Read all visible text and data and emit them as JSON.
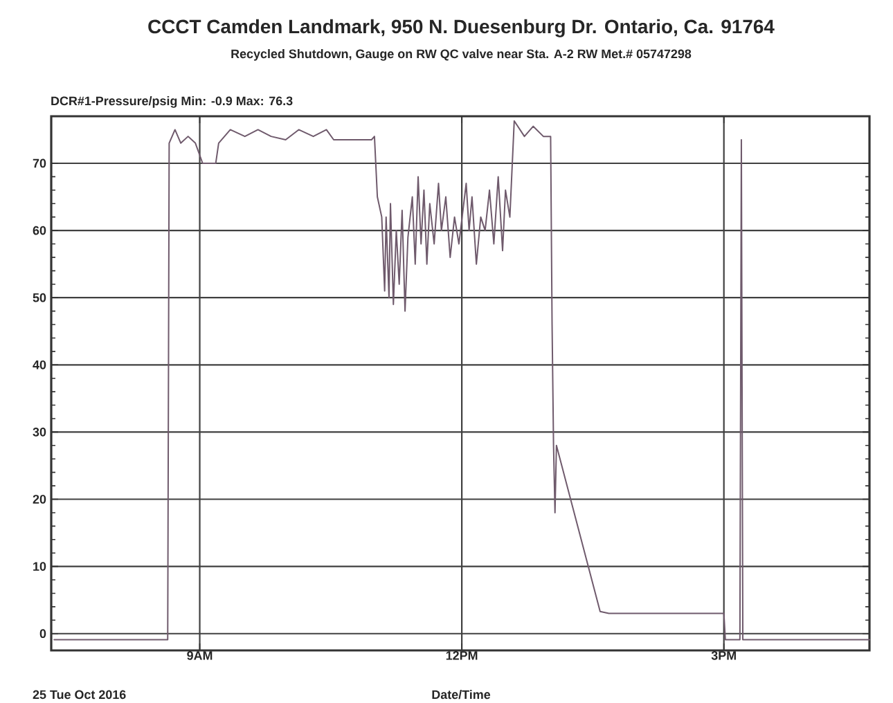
{
  "chart_data": {
    "type": "line",
    "title": "CCCT Camden Landmark, 950 N. Duesenburg Dr. Ontario, Ca. 91764",
    "subtitle": "Recycled Shutdown, Gauge on RW QC valve near Sta. A-2 RW Met.# 05747298",
    "ylabel": "DCR#1-Pressure/psig Min: -0.9 Max: 76.3",
    "xlabel": "Date/Time",
    "annotations": [
      "25 Tue Oct 2016"
    ],
    "x": [
      "2016-10-25T07:20",
      "2016-10-25T08:38",
      "2016-10-25T08:39",
      "2016-10-25T08:43",
      "2016-10-25T08:47",
      "2016-10-25T08:52",
      "2016-10-25T08:57",
      "2016-10-25T09:02",
      "2016-10-25T09:11",
      "2016-10-25T09:13",
      "2016-10-25T09:21",
      "2016-10-25T09:31",
      "2016-10-25T09:40",
      "2016-10-25T09:49",
      "2016-10-25T09:59",
      "2016-10-25T10:08",
      "2016-10-25T10:18",
      "2016-10-25T10:27",
      "2016-10-25T10:32",
      "2016-10-25T10:58",
      "2016-10-25T11:00",
      "2016-10-25T11:02",
      "2016-10-25T11:05",
      "2016-10-25T11:07",
      "2016-10-25T11:08",
      "2016-10-25T11:10",
      "2016-10-25T11:11",
      "2016-10-25T11:13",
      "2016-10-25T11:15",
      "2016-10-25T11:17",
      "2016-10-25T11:19",
      "2016-10-25T11:21",
      "2016-10-25T11:23",
      "2016-10-25T11:26",
      "2016-10-25T11:28",
      "2016-10-25T11:30",
      "2016-10-25T11:32",
      "2016-10-25T11:34",
      "2016-10-25T11:36",
      "2016-10-25T11:38",
      "2016-10-25T11:41",
      "2016-10-25T11:44",
      "2016-10-25T11:46",
      "2016-10-25T11:49",
      "2016-10-25T11:52",
      "2016-10-25T11:55",
      "2016-10-25T11:58",
      "2016-10-25T12:03",
      "2016-10-25T12:05",
      "2016-10-25T12:07",
      "2016-10-25T12:10",
      "2016-10-25T12:13",
      "2016-10-25T12:16",
      "2016-10-25T12:19",
      "2016-10-25T12:22",
      "2016-10-25T12:25",
      "2016-10-25T12:28",
      "2016-10-25T12:30",
      "2016-10-25T12:33",
      "2016-10-25T12:36",
      "2016-10-25T12:43",
      "2016-10-25T12:49",
      "2016-10-25T12:56",
      "2016-10-25T13:01",
      "2016-10-25T13:02",
      "2016-10-25T13:03",
      "2016-10-25T13:04",
      "2016-10-25T13:05",
      "2016-10-25T13:35",
      "2016-10-25T13:41",
      "2016-10-25T15:00",
      "2016-10-25T15:01",
      "2016-10-25T15:11",
      "2016-10-25T15:12",
      "2016-10-25T15:13",
      "2016-10-25T16:40"
    ],
    "series": [
      {
        "color": "#6f5a6c",
        "values": [
          -0.9,
          -0.9,
          73,
          75,
          73,
          74,
          73,
          70,
          70,
          73,
          75,
          74,
          75,
          74,
          73.5,
          75,
          74,
          75,
          73.5,
          73.5,
          74,
          65,
          62,
          51,
          62,
          50,
          64,
          49,
          60,
          52,
          63,
          48,
          59,
          65,
          55,
          68,
          58,
          66,
          55,
          64,
          58,
          67,
          60,
          65,
          56,
          62,
          58,
          67,
          60,
          65,
          55,
          62,
          60,
          66,
          58,
          68,
          57,
          66,
          62,
          76.3,
          74,
          75.5,
          74,
          74,
          46,
          28,
          18,
          28,
          3.3,
          3,
          3,
          -0.9,
          -0.9,
          73.5,
          -0.9,
          -0.9
        ]
      }
    ],
    "xlim": [
      "2016-10-25T07:18",
      "2016-10-25T16:40"
    ],
    "ylim": [
      -2.5,
      77
    ],
    "xticks": [
      {
        "value": "2016-10-25T09:00",
        "label": "9AM"
      },
      {
        "value": "2016-10-25T12:00",
        "label": "12PM"
      },
      {
        "value": "2016-10-25T15:00",
        "label": "3PM"
      }
    ],
    "yticks": [
      0,
      10,
      20,
      30,
      40,
      50,
      60,
      70
    ],
    "grid": true
  }
}
